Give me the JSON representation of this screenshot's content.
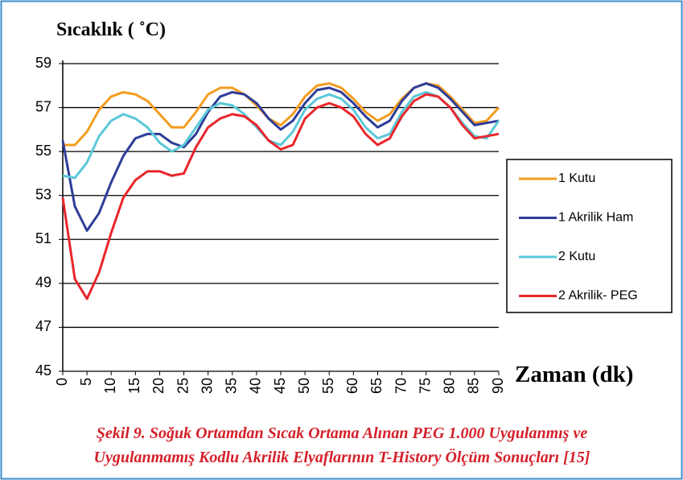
{
  "chart_data": {
    "type": "line",
    "ylabel": "Sıcaklık ( ˚C)",
    "xlabel": "Zaman (dk)",
    "caption": [
      "Şekil 9. Soğuk Ortamdan Sıcak Ortama Alınan PEG 1.000 Uygulanmış ve",
      "Uygulanmamış Kodlu Akrilik Elyaflarının T-History Ölçüm Sonuçları [15]"
    ],
    "x": [
      0,
      2.5,
      5,
      7.5,
      10,
      12.5,
      15,
      17.5,
      20,
      22.5,
      25,
      27.5,
      30,
      32.5,
      35,
      37.5,
      40,
      42.5,
      45,
      47.5,
      50,
      52.5,
      55,
      57.5,
      60,
      62.5,
      65,
      67.5,
      70,
      72.5,
      75,
      77.5,
      80,
      82.5,
      85,
      87.5,
      90
    ],
    "series": [
      {
        "name": "1 Kutu",
        "color": "#f39c1f",
        "values": [
          55.3,
          55.3,
          55.9,
          56.9,
          57.5,
          57.7,
          57.6,
          57.3,
          56.7,
          56.1,
          56.1,
          56.8,
          57.6,
          57.9,
          57.9,
          57.6,
          57.1,
          56.5,
          56.2,
          56.7,
          57.5,
          58.0,
          58.1,
          57.9,
          57.4,
          56.8,
          56.4,
          56.7,
          57.4,
          57.9,
          58.1,
          58.0,
          57.5,
          56.9,
          56.3,
          56.4,
          57.0
        ]
      },
      {
        "name": "1 Akrilik Ham",
        "color": "#2e3d98",
        "values": [
          55.5,
          52.5,
          51.4,
          52.2,
          53.6,
          54.8,
          55.6,
          55.8,
          55.8,
          55.4,
          55.2,
          55.8,
          56.8,
          57.5,
          57.7,
          57.6,
          57.2,
          56.5,
          56.0,
          56.4,
          57.2,
          57.8,
          57.9,
          57.7,
          57.2,
          56.6,
          56.1,
          56.4,
          57.3,
          57.9,
          58.1,
          57.9,
          57.4,
          56.8,
          56.2,
          56.3,
          56.4
        ]
      },
      {
        "name": "2 Kutu",
        "color": "#5bc8d8",
        "values": [
          53.9,
          53.8,
          54.5,
          55.7,
          56.4,
          56.7,
          56.5,
          56.1,
          55.4,
          55.0,
          55.3,
          56.1,
          56.9,
          57.2,
          57.1,
          56.7,
          56.1,
          55.5,
          55.3,
          55.9,
          56.9,
          57.4,
          57.6,
          57.4,
          56.9,
          56.1,
          55.6,
          55.8,
          56.8,
          57.5,
          57.7,
          57.5,
          57.0,
          56.3,
          55.7,
          55.6,
          56.4
        ]
      },
      {
        "name": "2 Akrilik- PEG",
        "color": "#e8262b",
        "values": [
          52.9,
          49.2,
          48.3,
          49.5,
          51.3,
          52.9,
          53.7,
          54.1,
          54.1,
          53.9,
          54.0,
          55.2,
          56.1,
          56.5,
          56.7,
          56.6,
          56.2,
          55.5,
          55.1,
          55.3,
          56.5,
          57.0,
          57.2,
          57.0,
          56.6,
          55.8,
          55.3,
          55.6,
          56.6,
          57.3,
          57.6,
          57.5,
          57.0,
          56.2,
          55.6,
          55.7,
          55.8
        ]
      }
    ],
    "xlim": [
      0,
      90
    ],
    "xticks": [
      0,
      5,
      10,
      15,
      20,
      25,
      30,
      35,
      40,
      45,
      50,
      55,
      60,
      65,
      70,
      75,
      80,
      85,
      90
    ],
    "ylim": [
      45,
      59
    ],
    "yticks": [
      45,
      47,
      49,
      51,
      53,
      55,
      57,
      59
    ],
    "grid": true,
    "legend": "right"
  }
}
